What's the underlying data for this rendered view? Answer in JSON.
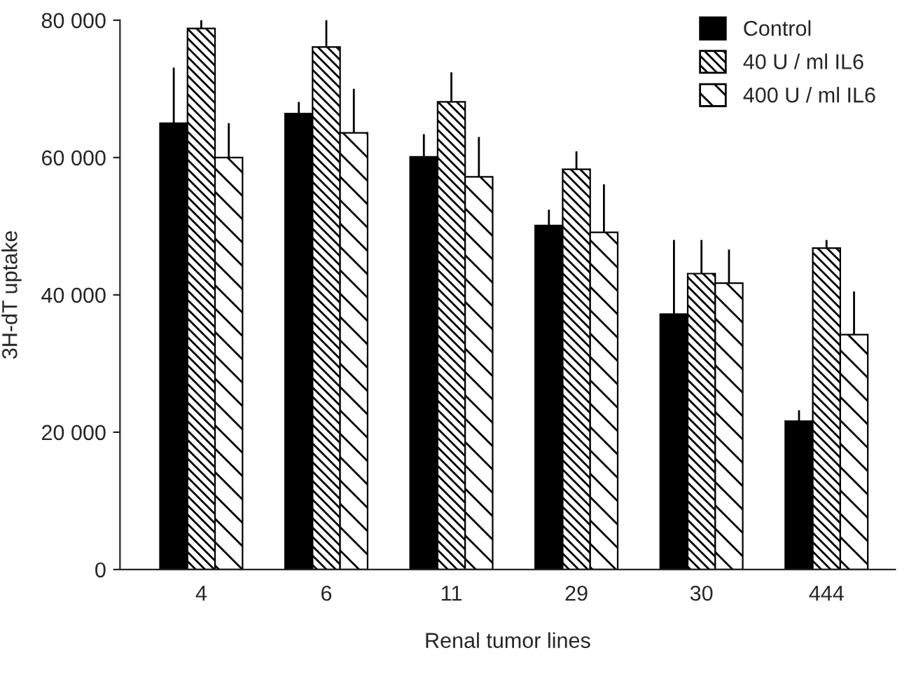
{
  "chart_data": {
    "type": "bar",
    "xlabel": "Renal tumor lines",
    "ylabel": "3H-dT uptake",
    "categories": [
      "4",
      "6",
      "11",
      "29",
      "30",
      "444"
    ],
    "series": [
      {
        "name": "Control",
        "color": "#000000",
        "values": [
          65000,
          66400,
          60100,
          50100,
          37200,
          21600
        ],
        "errors": [
          [
            65000,
            73100
          ],
          [
            66400,
            68100
          ],
          [
            60100,
            63400
          ],
          [
            50100,
            52400
          ],
          [
            37200,
            48000
          ],
          [
            21600,
            23200
          ]
        ]
      },
      {
        "name": "40 U / ml IL6",
        "color": "#000000",
        "values": [
          78800,
          76100,
          68100,
          58300,
          43100,
          46800
        ],
        "errors": [
          [
            78800,
            80000
          ],
          [
            76100,
            80000
          ],
          [
            68100,
            72400
          ],
          [
            58300,
            60900
          ],
          [
            43100,
            48000
          ],
          [
            46800,
            48000
          ]
        ]
      },
      {
        "name": "400 U / ml IL6",
        "color": "#000000",
        "values": [
          60000,
          63600,
          57200,
          49100,
          41700,
          34200
        ],
        "errors": [
          [
            60000,
            65000
          ],
          [
            63600,
            70000
          ],
          [
            57200,
            63000
          ],
          [
            49100,
            56100
          ],
          [
            41700,
            46600
          ],
          [
            34200,
            40500
          ]
        ]
      }
    ],
    "ylim": [
      0,
      80000
    ],
    "yticks": [
      0,
      {
        "value": 20000,
        "label": "20 000"
      },
      {
        "value": 40000,
        "label": "40 000"
      },
      {
        "value": 60000,
        "label": "60 000"
      },
      {
        "value": 80000,
        "label": "80 000"
      }
    ],
    "grid": false,
    "legend": "top right"
  }
}
